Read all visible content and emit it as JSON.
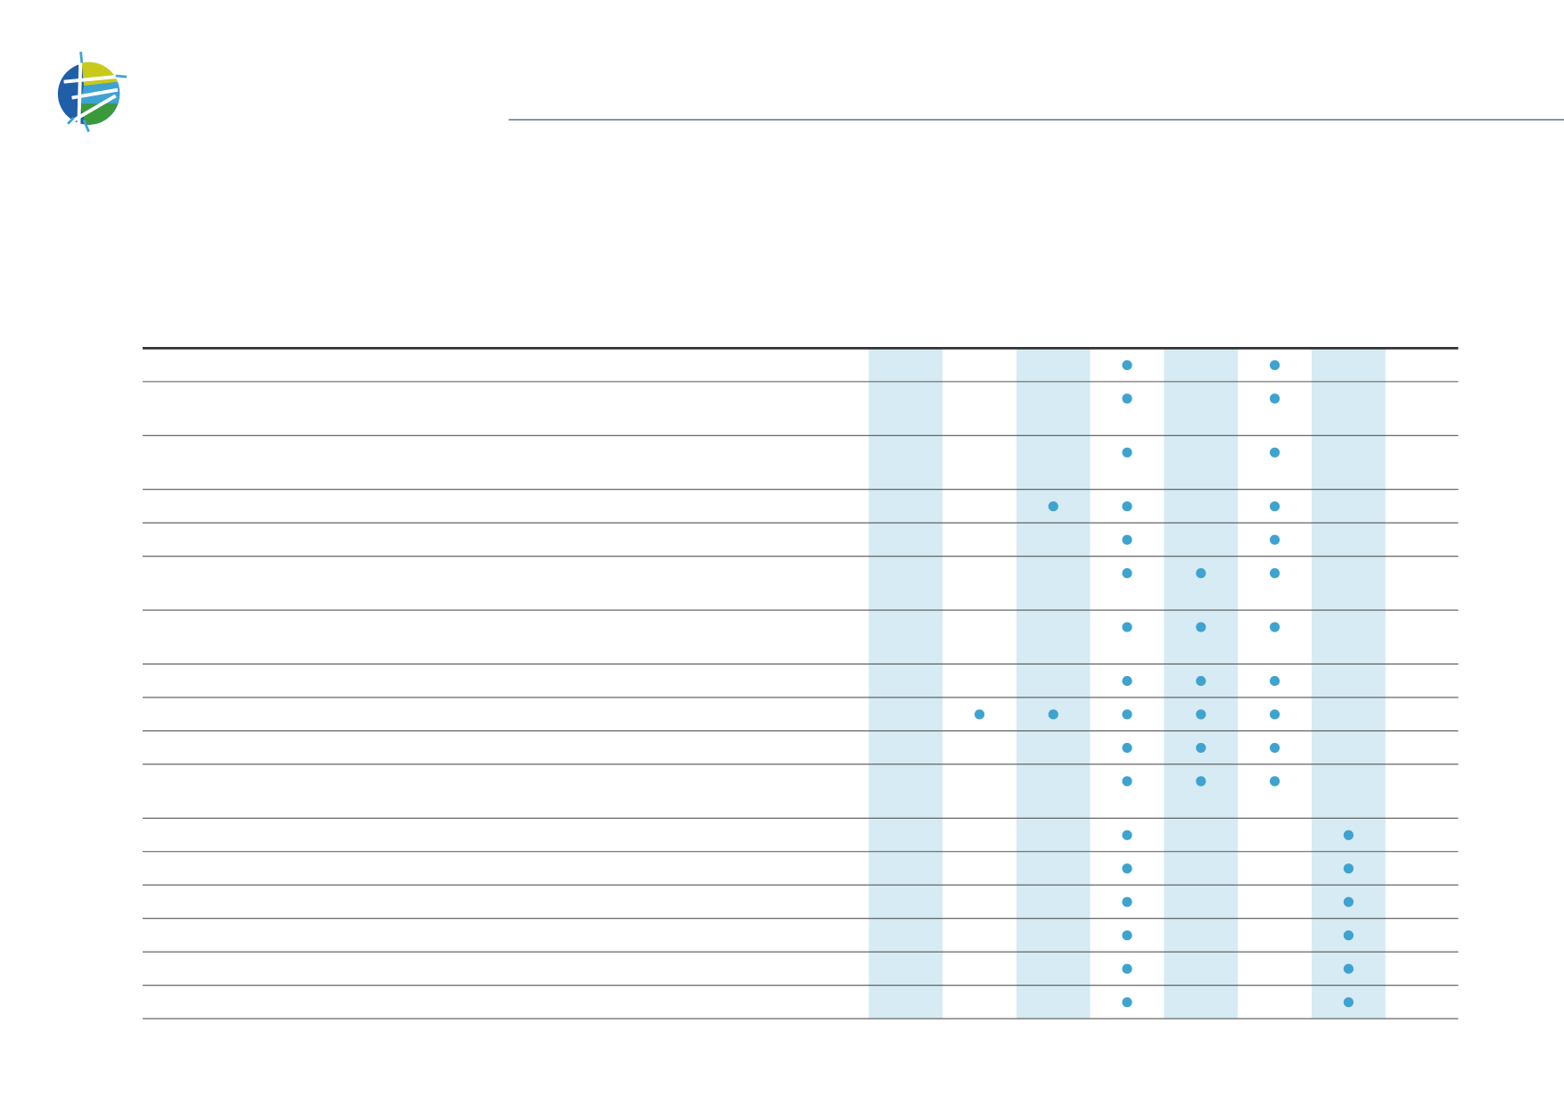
{
  "table": {
    "rows": [
      [
        false,
        false,
        false,
        true,
        false,
        true,
        false,
        false
      ],
      [
        false,
        false,
        false,
        true,
        false,
        true,
        false,
        false
      ],
      [
        false,
        false,
        false,
        true,
        false,
        true,
        false,
        false
      ],
      [
        false,
        false,
        true,
        true,
        false,
        true,
        false,
        false
      ],
      [
        false,
        false,
        false,
        true,
        false,
        true,
        false,
        false
      ],
      [
        false,
        false,
        false,
        true,
        true,
        true,
        false,
        false
      ],
      [
        false,
        false,
        false,
        true,
        true,
        true,
        false,
        false
      ],
      [
        false,
        false,
        false,
        true,
        true,
        true,
        false,
        false
      ],
      [
        false,
        true,
        true,
        true,
        true,
        true,
        false,
        false
      ],
      [
        false,
        false,
        false,
        true,
        true,
        true,
        false,
        false
      ],
      [
        false,
        false,
        false,
        true,
        true,
        true,
        false,
        false
      ],
      [
        false,
        false,
        false,
        true,
        false,
        false,
        true,
        false
      ],
      [
        false,
        false,
        false,
        true,
        false,
        false,
        true,
        false
      ],
      [
        false,
        false,
        false,
        true,
        false,
        false,
        true,
        false
      ],
      [
        false,
        false,
        false,
        true,
        false,
        false,
        true,
        false
      ],
      [
        false,
        false,
        false,
        true,
        false,
        false,
        true,
        false
      ],
      [
        false,
        false,
        false,
        true,
        false,
        false,
        true,
        false
      ]
    ]
  }
}
